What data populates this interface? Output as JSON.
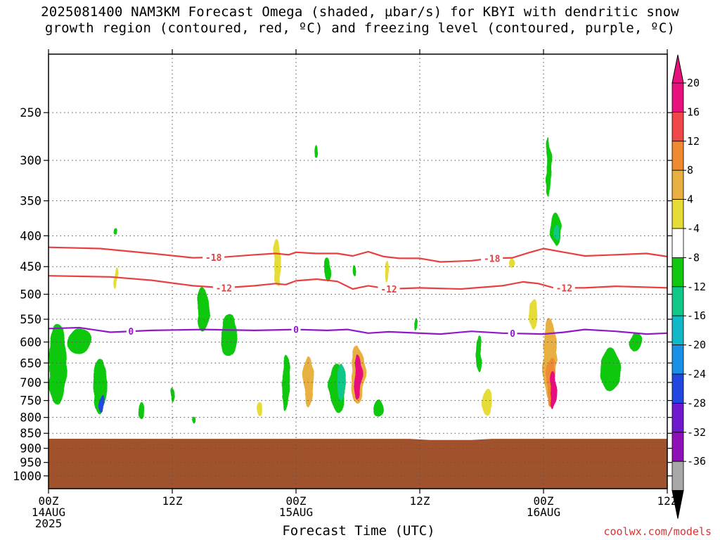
{
  "title": {
    "line1": "2025081400 NAM3KM Forecast Omega (shaded, µbar/s) for KBYI with dendritic snow",
    "line2": "growth region (contoured, red, ºC) and freezing level (contoured, purple, ºC)"
  },
  "credit": "coolwx.com/models",
  "chart_data": {
    "type": "heatmap",
    "xlabel": "Forecast Time (UTC)",
    "ylabel": "",
    "x_ticks": [
      {
        "hour": 0,
        "lines": [
          "00Z",
          "14AUG",
          "2025"
        ]
      },
      {
        "hour": 12,
        "lines": [
          "12Z"
        ]
      },
      {
        "hour": 24,
        "lines": [
          "00Z",
          "15AUG"
        ]
      },
      {
        "hour": 36,
        "lines": [
          "12Z"
        ]
      },
      {
        "hour": 48,
        "lines": [
          "00Z",
          "16AUG"
        ]
      },
      {
        "hour": 60,
        "lines": [
          "12Z"
        ]
      }
    ],
    "xlim": [
      0,
      60
    ],
    "y_scale": "log",
    "ylim": [
      1050,
      200
    ],
    "y_ticks": [
      250,
      300,
      350,
      400,
      450,
      500,
      550,
      600,
      650,
      700,
      750,
      800,
      850,
      900,
      950,
      1000
    ],
    "grid": true,
    "colorbar": {
      "labels": [
        "20",
        "16",
        "12",
        "8",
        "4",
        "-4",
        "-8",
        "-12",
        "-16",
        "-20",
        "-24",
        "-28",
        "-32",
        "-36"
      ],
      "bins": [
        {
          "color": "#e8107d",
          "from": 20,
          "to": 24
        },
        {
          "color": "#f04848",
          "from": 16,
          "to": 20
        },
        {
          "color": "#f08a30",
          "from": 12,
          "to": 16
        },
        {
          "color": "#e8b040",
          "from": 8,
          "to": 12
        },
        {
          "color": "#e6dc38",
          "from": 4,
          "to": 8
        },
        {
          "color": "#ffffff",
          "from": -4,
          "to": 4
        },
        {
          "color": "#10c810",
          "from": -8,
          "to": -4
        },
        {
          "color": "#10c888",
          "from": -12,
          "to": -8
        },
        {
          "color": "#10b8c8",
          "from": -16,
          "to": -12
        },
        {
          "color": "#1890e8",
          "from": -20,
          "to": -16
        },
        {
          "color": "#2048e0",
          "from": -24,
          "to": -20
        },
        {
          "color": "#7018d0",
          "from": -28,
          "to": -24
        },
        {
          "color": "#9010b8",
          "from": -32,
          "to": -28
        },
        {
          "color": "#a8a8a8",
          "from": -36,
          "to": -32
        }
      ],
      "over_color": "#e8107d",
      "under_color": "#000000"
    },
    "terrain_color": "#a0522d",
    "terrain_top": [
      {
        "hour": 0,
        "p": 868
      },
      {
        "hour": 35,
        "p": 868
      },
      {
        "hour": 37,
        "p": 872
      },
      {
        "hour": 41,
        "p": 872
      },
      {
        "hour": 43,
        "p": 868
      },
      {
        "hour": 60,
        "p": 868
      }
    ],
    "contours": [
      {
        "level": -18,
        "color": "#e84040",
        "label": "-18",
        "label_hours": [
          16,
          43
        ],
        "points": [
          [
            0,
            418
          ],
          [
            5,
            420
          ],
          [
            10,
            428
          ],
          [
            14,
            435
          ],
          [
            17,
            434
          ],
          [
            20,
            430
          ],
          [
            22,
            428
          ],
          [
            23.3,
            430
          ],
          [
            24,
            426
          ],
          [
            26,
            428
          ],
          [
            28,
            428
          ],
          [
            29.5,
            432
          ],
          [
            31,
            425
          ],
          [
            32.5,
            433
          ],
          [
            34,
            436
          ],
          [
            36,
            436
          ],
          [
            38,
            442
          ],
          [
            41,
            440
          ],
          [
            43,
            436
          ],
          [
            45,
            435
          ],
          [
            46.5,
            427
          ],
          [
            48,
            420
          ],
          [
            50,
            426
          ],
          [
            52,
            432
          ],
          [
            55,
            430
          ],
          [
            58,
            428
          ],
          [
            60,
            433
          ]
        ]
      },
      {
        "level": -12,
        "color": "#e84040",
        "label": "-12",
        "label_hours": [
          17,
          33,
          50
        ],
        "points": [
          [
            0,
            466
          ],
          [
            6,
            468
          ],
          [
            10,
            474
          ],
          [
            14,
            484
          ],
          [
            17,
            488
          ],
          [
            20,
            484
          ],
          [
            22,
            480
          ],
          [
            23,
            482
          ],
          [
            24,
            475
          ],
          [
            26,
            472
          ],
          [
            28,
            476
          ],
          [
            29.5,
            490
          ],
          [
            31,
            484
          ],
          [
            33,
            490
          ],
          [
            36,
            488
          ],
          [
            40,
            490
          ],
          [
            44,
            484
          ],
          [
            46,
            477
          ],
          [
            47.5,
            480
          ],
          [
            49,
            488
          ],
          [
            52,
            488
          ],
          [
            55,
            485
          ],
          [
            60,
            488
          ]
        ]
      },
      {
        "level": 0,
        "color": "#9018c8",
        "label": "0",
        "label_hours": [
          8,
          24,
          45
        ],
        "points": [
          [
            0,
            570
          ],
          [
            3,
            568
          ],
          [
            6,
            578
          ],
          [
            10,
            574
          ],
          [
            15,
            572
          ],
          [
            20,
            574
          ],
          [
            24,
            572
          ],
          [
            27,
            574
          ],
          [
            29,
            572
          ],
          [
            31,
            580
          ],
          [
            33,
            577
          ],
          [
            38,
            582
          ],
          [
            41,
            576
          ],
          [
            44,
            580
          ],
          [
            48,
            582
          ],
          [
            50,
            578
          ],
          [
            52,
            572
          ],
          [
            55,
            576
          ],
          [
            58,
            582
          ],
          [
            60,
            580
          ]
        ]
      }
    ],
    "omega_features": [
      {
        "hour": 0.9,
        "p": 660,
        "dh": 1.8,
        "dp": 200,
        "value": -4.5
      },
      {
        "hour": 5.0,
        "p": 715,
        "dh": 1.4,
        "dp": 150,
        "value": -6
      },
      {
        "hour": 5.2,
        "p": 760,
        "dh": 0.6,
        "dp": 50,
        "value": -24
      },
      {
        "hour": 3.0,
        "p": 600,
        "dh": 2.2,
        "dp": 60,
        "value": -5
      },
      {
        "hour": 15.0,
        "p": 530,
        "dh": 1.2,
        "dp": 90,
        "value": -5
      },
      {
        "hour": 17.5,
        "p": 585,
        "dh": 1.6,
        "dp": 95,
        "value": -5
      },
      {
        "hour": 9.0,
        "p": 780,
        "dh": 0.6,
        "dp": 50,
        "value": -5
      },
      {
        "hour": 12.0,
        "p": 735,
        "dh": 0.4,
        "dp": 40,
        "value": -5
      },
      {
        "hour": 14.0,
        "p": 810,
        "dh": 0.3,
        "dp": 20,
        "value": -5
      },
      {
        "hour": 6.5,
        "p": 470,
        "dh": 0.25,
        "dp": 40,
        "value": 5
      },
      {
        "hour": 6.5,
        "p": 392,
        "dh": 0.25,
        "dp": 10,
        "value": -5
      },
      {
        "hour": 22.2,
        "p": 445,
        "dh": 0.7,
        "dp": 80,
        "value": 6
      },
      {
        "hour": 23.0,
        "p": 705,
        "dh": 0.7,
        "dp": 150,
        "value": -6
      },
      {
        "hour": 25.2,
        "p": 700,
        "dh": 1.0,
        "dp": 130,
        "value": 10
      },
      {
        "hour": 20.5,
        "p": 775,
        "dh": 0.5,
        "dp": 40,
        "value": 5
      },
      {
        "hour": 28.0,
        "p": 720,
        "dh": 1.6,
        "dp": 140,
        "value": -7
      },
      {
        "hour": 28.4,
        "p": 700,
        "dh": 0.8,
        "dp": 100,
        "value": -12
      },
      {
        "hour": 30.0,
        "p": 685,
        "dh": 1.3,
        "dp": 150,
        "value": 9
      },
      {
        "hour": 30.0,
        "p": 690,
        "dh": 0.7,
        "dp": 120,
        "value": 22
      },
      {
        "hour": 32.0,
        "p": 775,
        "dh": 1.1,
        "dp": 50,
        "value": -5
      },
      {
        "hour": 27.0,
        "p": 455,
        "dh": 0.6,
        "dp": 40,
        "value": -5
      },
      {
        "hour": 26.0,
        "p": 290,
        "dh": 0.2,
        "dp": 15,
        "value": -5
      },
      {
        "hour": 29.8,
        "p": 460,
        "dh": 0.2,
        "dp": 20,
        "value": -5
      },
      {
        "hour": 32.8,
        "p": 460,
        "dh": 0.35,
        "dp": 35,
        "value": 5
      },
      {
        "hour": 35.5,
        "p": 560,
        "dh": 0.25,
        "dp": 25,
        "value": -5
      },
      {
        "hour": 41.8,
        "p": 630,
        "dh": 0.5,
        "dp": 90,
        "value": -5
      },
      {
        "hour": 42.5,
        "p": 755,
        "dh": 1.0,
        "dp": 85,
        "value": 5
      },
      {
        "hour": 45.0,
        "p": 445,
        "dh": 0.5,
        "dp": 15,
        "value": 5
      },
      {
        "hour": 47.0,
        "p": 540,
        "dh": 0.8,
        "dp": 60,
        "value": 6
      },
      {
        "hour": 48.6,
        "p": 650,
        "dh": 1.3,
        "dp": 200,
        "value": 9
      },
      {
        "hour": 48.8,
        "p": 700,
        "dh": 0.9,
        "dp": 130,
        "value": 14
      },
      {
        "hour": 49.0,
        "p": 720,
        "dh": 0.6,
        "dp": 100,
        "value": 22
      },
      {
        "hour": 48.5,
        "p": 310,
        "dh": 0.5,
        "dp": 70,
        "value": -5
      },
      {
        "hour": 49.2,
        "p": 390,
        "dh": 1.0,
        "dp": 50,
        "value": -6
      },
      {
        "hour": 49.3,
        "p": 395,
        "dh": 0.5,
        "dp": 25,
        "value": -9
      },
      {
        "hour": 54.5,
        "p": 670,
        "dh": 2.0,
        "dp": 110,
        "value": -5
      },
      {
        "hour": 57.0,
        "p": 600,
        "dh": 1.1,
        "dp": 40,
        "value": -5
      }
    ]
  }
}
